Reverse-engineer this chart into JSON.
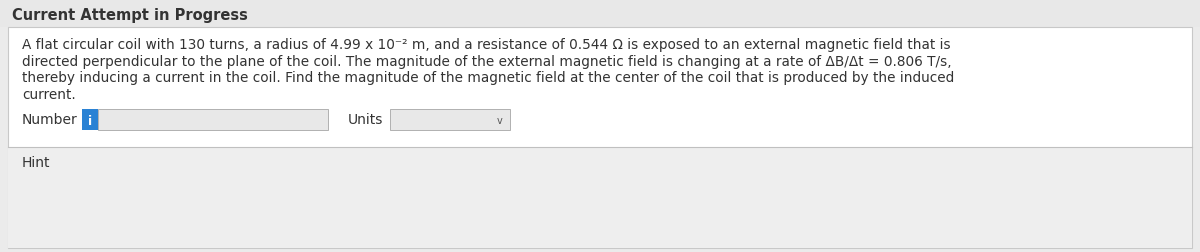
{
  "bg_color": "#ebebeb",
  "panel_bg": "#ebebeb",
  "white_color": "#ffffff",
  "border_color": "#c8c8c8",
  "title": "Current Attempt in Progress",
  "title_fontsize": 10.5,
  "title_color": "#333333",
  "body_text_line1": "A flat circular coil with 130 turns, a radius of 4.99 x 10⁻² m, and a resistance of 0.544 Ω is exposed to an external magnetic field that is",
  "body_text_line2": "directed perpendicular to the plane of the coil. The magnitude of the external magnetic field is changing at a rate of ΔB/Δt = 0.806 T/s,",
  "body_text_line3": "thereby inducing a current in the coil. Find the magnitude of the magnetic field at the center of the coil that is produced by the induced",
  "body_text_line4": "current.",
  "number_label": "Number",
  "units_label": "Units",
  "hint_label": "Hint",
  "body_fontsize": 9.8,
  "input_bg": "#e8e8e8",
  "input_border": "#b0b0b0",
  "icon_color": "#2a82d4",
  "icon_text": "i",
  "dropdown_arrow": "v",
  "separator_color": "#c0c0c0",
  "text_color": "#333333",
  "hint_bg": "#f0f0f0"
}
